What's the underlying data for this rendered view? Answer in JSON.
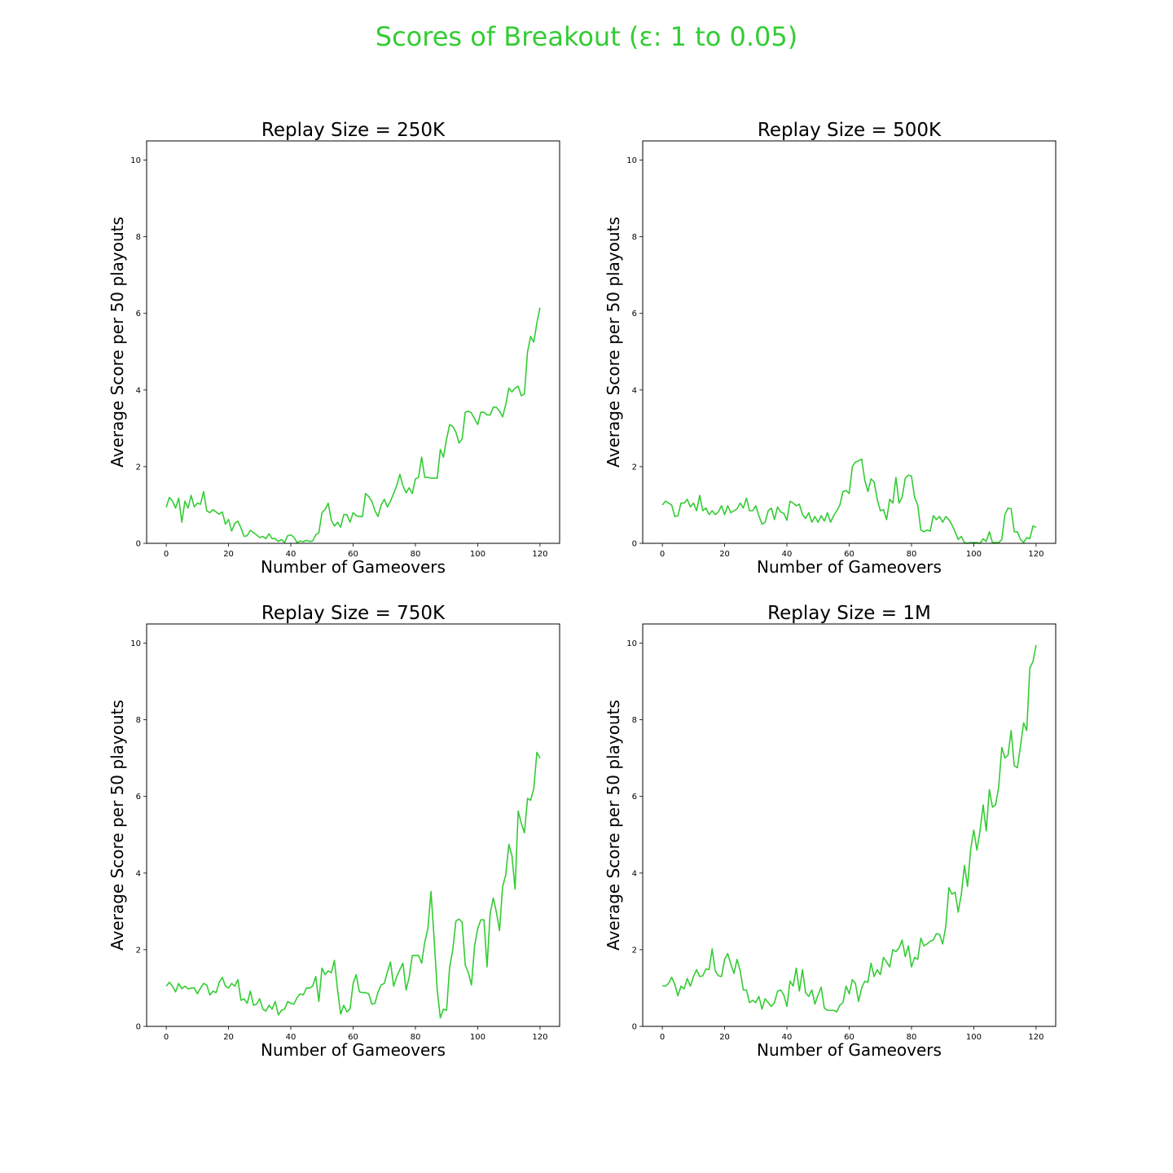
{
  "figure": {
    "title": "Scores of Breakout (ε: 1 to 0.05)",
    "title_color": "#33cc33"
  },
  "line_color": "#33cc33",
  "chart_data": [
    {
      "type": "line",
      "title": "Replay Size = 250K",
      "xlabel": "Number of Gameovers",
      "ylabel": "Average Score per 50 playouts",
      "xlim": [
        -6.3,
        126.3
      ],
      "ylim": [
        0,
        10.5
      ],
      "xticks": [
        0,
        20,
        40,
        60,
        80,
        100,
        120
      ],
      "yticks": [
        0,
        2,
        4,
        6,
        8,
        10
      ],
      "x_start": 0,
      "y": [
        0.94,
        1.2,
        1.1,
        0.92,
        1.18,
        0.55,
        1.1,
        0.92,
        1.25,
        0.95,
        1.05,
        1.02,
        1.35,
        0.85,
        0.8,
        0.88,
        0.82,
        0.76,
        0.82,
        0.5,
        0.62,
        0.32,
        0.52,
        0.58,
        0.4,
        0.18,
        0.2,
        0.34,
        0.28,
        0.22,
        0.15,
        0.18,
        0.12,
        0.25,
        0.12,
        0.12,
        0.05,
        0.1,
        0.02,
        0.2,
        0.22,
        0.16,
        0.02,
        0.06,
        0.04,
        0.08,
        0.05,
        0.06,
        0.22,
        0.28,
        0.8,
        0.88,
        1.05,
        0.6,
        0.45,
        0.55,
        0.42,
        0.75,
        0.75,
        0.55,
        0.8,
        0.72,
        0.7,
        0.7,
        1.3,
        1.22,
        1.1,
        0.85,
        0.7,
        1.0,
        1.15,
        0.95,
        1.1,
        1.3,
        1.5,
        1.8,
        1.5,
        1.32,
        1.45,
        1.3,
        1.68,
        1.72,
        2.25,
        1.72,
        1.72,
        1.7,
        1.7,
        1.7,
        2.45,
        2.25,
        2.72,
        3.1,
        3.05,
        2.9,
        2.62,
        2.72,
        3.42,
        3.45,
        3.4,
        3.25,
        3.1,
        3.42,
        3.42,
        3.35,
        3.35,
        3.55,
        3.55,
        3.45,
        3.3,
        3.62,
        4.05,
        3.95,
        4.05,
        4.1,
        3.85,
        3.9,
        5.0,
        5.4,
        5.25,
        5.75,
        6.15
      ]
    },
    {
      "type": "line",
      "title": "Replay Size = 500K",
      "xlabel": "Number of Gameovers",
      "ylabel": "Average Score per 50 playouts",
      "xlim": [
        -6.3,
        126.3
      ],
      "ylim": [
        0,
        10.5
      ],
      "xticks": [
        0,
        20,
        40,
        60,
        80,
        100,
        120
      ],
      "yticks": [
        0,
        2,
        4,
        6,
        8,
        10
      ],
      "x_start": 0,
      "y": [
        1.0,
        1.1,
        1.05,
        1.0,
        0.7,
        0.72,
        1.05,
        1.05,
        1.15,
        0.95,
        1.05,
        0.85,
        1.25,
        0.85,
        0.92,
        0.75,
        0.85,
        0.75,
        0.82,
        0.98,
        0.75,
        0.98,
        0.8,
        0.85,
        0.9,
        1.05,
        0.92,
        1.18,
        0.85,
        0.85,
        0.98,
        0.72,
        0.5,
        0.55,
        0.85,
        0.92,
        0.62,
        0.95,
        0.82,
        0.78,
        0.6,
        1.1,
        1.05,
        0.98,
        1.02,
        0.75,
        0.65,
        0.8,
        0.55,
        0.7,
        0.55,
        0.72,
        0.58,
        0.8,
        0.55,
        0.72,
        0.85,
        1.0,
        1.35,
        1.38,
        1.3,
        2.0,
        2.12,
        2.15,
        2.2,
        1.65,
        1.35,
        1.68,
        1.6,
        1.15,
        0.85,
        0.88,
        0.62,
        1.15,
        1.05,
        1.72,
        1.05,
        1.2,
        1.7,
        1.78,
        1.75,
        1.2,
        1.0,
        0.35,
        0.3,
        0.35,
        0.32,
        0.72,
        0.62,
        0.7,
        0.55,
        0.7,
        0.62,
        0.48,
        0.3,
        0.1,
        0.18,
        0.02,
        0.0,
        0.02,
        0.02,
        0.02,
        0.0,
        0.12,
        0.05,
        0.3,
        0.02,
        0.02,
        0.02,
        0.1,
        0.75,
        0.92,
        0.9,
        0.3,
        0.3,
        0.1,
        0.02,
        0.15,
        0.12,
        0.45,
        0.42
      ]
    },
    {
      "type": "line",
      "title": "Replay Size = 750K",
      "xlabel": "Number of Gameovers",
      "ylabel": "Average Score per 50 playouts",
      "xlim": [
        -6.3,
        126.3
      ],
      "ylim": [
        0,
        10.5
      ],
      "xticks": [
        0,
        20,
        40,
        60,
        80,
        100,
        120
      ],
      "yticks": [
        0,
        2,
        4,
        6,
        8,
        10
      ],
      "x_start": 0,
      "y": [
        1.05,
        1.15,
        1.05,
        0.9,
        1.12,
        0.98,
        1.05,
        0.98,
        1.0,
        1.0,
        0.85,
        1.0,
        1.12,
        1.08,
        0.82,
        0.92,
        0.88,
        1.15,
        1.28,
        1.05,
        1.0,
        1.12,
        1.05,
        1.22,
        0.68,
        0.72,
        0.6,
        0.92,
        0.55,
        0.58,
        0.72,
        0.45,
        0.4,
        0.55,
        0.45,
        0.65,
        0.3,
        0.42,
        0.45,
        0.65,
        0.6,
        0.58,
        0.75,
        0.85,
        0.82,
        1.0,
        1.0,
        1.05,
        1.3,
        0.65,
        1.52,
        1.35,
        1.45,
        1.4,
        1.72,
        0.95,
        0.32,
        0.55,
        0.38,
        0.45,
        1.12,
        1.35,
        0.9,
        0.88,
        0.88,
        0.85,
        0.58,
        0.6,
        0.9,
        1.08,
        1.12,
        1.42,
        1.68,
        1.05,
        1.3,
        1.48,
        1.65,
        0.95,
        1.28,
        1.85,
        1.85,
        1.85,
        1.65,
        2.2,
        2.55,
        3.52,
        2.3,
        0.95,
        0.22,
        0.45,
        0.42,
        1.55,
        2.0,
        2.75,
        2.8,
        2.72,
        1.6,
        1.4,
        1.08,
        2.1,
        2.55,
        2.78,
        2.78,
        1.55,
        2.95,
        3.35,
        2.98,
        2.5,
        3.65,
        3.95,
        4.75,
        4.45,
        3.58,
        5.62,
        5.3,
        5.05,
        5.95,
        5.9,
        6.2,
        7.15,
        7.0
      ]
    },
    {
      "type": "line",
      "title": "Replay Size = 1M",
      "xlabel": "Number of Gameovers",
      "ylabel": "Average Score per 50 playouts",
      "xlim": [
        -6.3,
        126.3
      ],
      "ylim": [
        0,
        10.5
      ],
      "xticks": [
        0,
        20,
        40,
        60,
        80,
        100,
        120
      ],
      "yticks": [
        0,
        2,
        4,
        6,
        8,
        10
      ],
      "x_start": 0,
      "y": [
        1.06,
        1.05,
        1.12,
        1.28,
        1.1,
        0.8,
        1.05,
        0.98,
        1.25,
        1.05,
        1.3,
        1.48,
        1.3,
        1.32,
        1.5,
        1.48,
        2.02,
        1.45,
        1.32,
        1.3,
        1.75,
        1.9,
        1.62,
        1.38,
        1.75,
        1.45,
        0.95,
        0.95,
        0.62,
        0.68,
        0.62,
        0.78,
        0.45,
        0.72,
        0.62,
        0.52,
        0.62,
        0.92,
        0.95,
        0.82,
        0.52,
        1.18,
        1.05,
        1.52,
        0.92,
        1.48,
        0.88,
        0.78,
        0.95,
        0.58,
        0.82,
        1.02,
        0.48,
        0.42,
        0.42,
        0.42,
        0.38,
        0.55,
        0.62,
        1.05,
        0.85,
        1.22,
        1.12,
        0.65,
        1.0,
        1.18,
        1.15,
        1.65,
        1.3,
        1.48,
        1.35,
        1.8,
        1.68,
        1.55,
        2.0,
        1.95,
        2.05,
        2.25,
        1.82,
        2.1,
        1.55,
        1.8,
        1.75,
        2.3,
        2.1,
        2.15,
        2.22,
        2.25,
        2.42,
        2.4,
        2.15,
        2.6,
        3.62,
        3.45,
        3.5,
        2.98,
        3.45,
        4.2,
        3.65,
        4.62,
        5.12,
        4.6,
        5.1,
        5.78,
        5.1,
        6.18,
        5.72,
        5.78,
        6.25,
        7.28,
        7.0,
        7.08,
        7.72,
        6.8,
        6.75,
        7.32,
        7.92,
        7.72,
        9.35,
        9.52,
        9.95
      ]
    }
  ]
}
